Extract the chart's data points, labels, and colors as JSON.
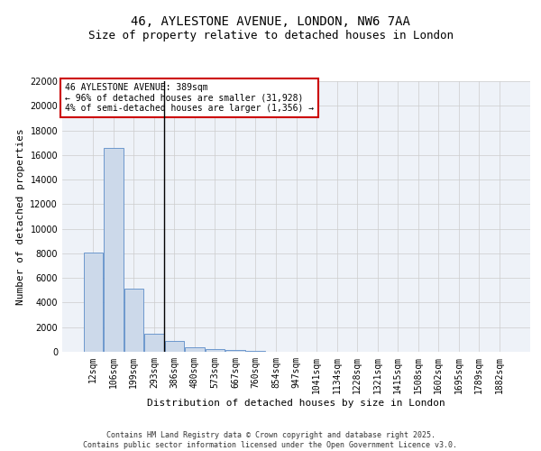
{
  "title_line1": "46, AYLESTONE AVENUE, LONDON, NW6 7AA",
  "title_line2": "Size of property relative to detached houses in London",
  "xlabel": "Distribution of detached houses by size in London",
  "ylabel": "Number of detached properties",
  "categories": [
    "12sqm",
    "106sqm",
    "199sqm",
    "293sqm",
    "386sqm",
    "480sqm",
    "573sqm",
    "667sqm",
    "760sqm",
    "854sqm",
    "947sqm",
    "1041sqm",
    "1134sqm",
    "1228sqm",
    "1321sqm",
    "1415sqm",
    "1508sqm",
    "1602sqm",
    "1695sqm",
    "1789sqm",
    "1882sqm"
  ],
  "values": [
    8100,
    16600,
    5100,
    1500,
    900,
    370,
    210,
    130,
    70,
    30,
    15,
    5,
    2,
    1,
    0,
    0,
    0,
    0,
    0,
    0,
    0
  ],
  "bar_color": "#ccd9ea",
  "bar_edge_color": "#5b8cc8",
  "vline_x": 3.5,
  "vline_color": "#000000",
  "annotation_text": "46 AYLESTONE AVENUE: 389sqm\n← 96% of detached houses are smaller (31,928)\n4% of semi-detached houses are larger (1,356) →",
  "annotation_box_color": "#ffffff",
  "annotation_box_edge": "#cc0000",
  "ylim": [
    0,
    22000
  ],
  "yticks": [
    0,
    2000,
    4000,
    6000,
    8000,
    10000,
    12000,
    14000,
    16000,
    18000,
    20000,
    22000
  ],
  "grid_color": "#cccccc",
  "bg_color": "#eef2f8",
  "footer": "Contains HM Land Registry data © Crown copyright and database right 2025.\nContains public sector information licensed under the Open Government Licence v3.0.",
  "title_fontsize": 10,
  "subtitle_fontsize": 9,
  "tick_fontsize": 7,
  "label_fontsize": 8,
  "annotation_fontsize": 7
}
